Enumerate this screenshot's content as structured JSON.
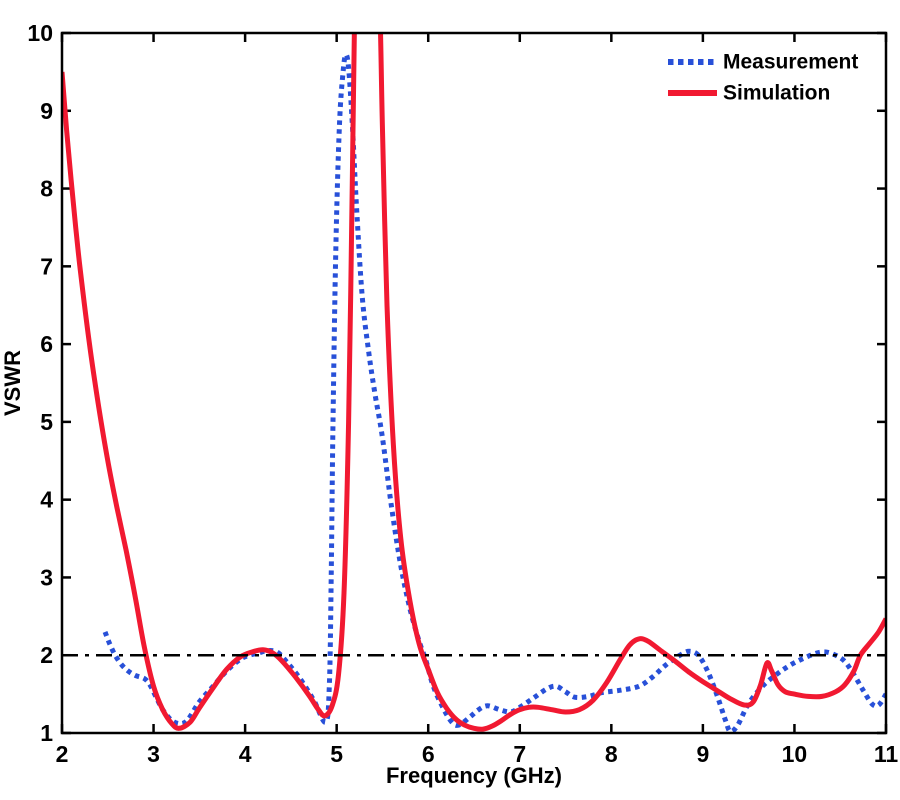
{
  "chart_data": {
    "type": "line",
    "title": "",
    "xlabel": "Frequency (GHz)",
    "ylabel": "VSWR",
    "xlim": [
      2,
      11
    ],
    "ylim": [
      1,
      10
    ],
    "x_ticks": [
      2,
      3,
      4,
      5,
      6,
      7,
      8,
      9,
      10,
      11
    ],
    "y_ticks": [
      1,
      2,
      3,
      4,
      5,
      6,
      7,
      8,
      9,
      10
    ],
    "grid": false,
    "legend_position": "top-right",
    "axis_color": "#000000",
    "reference_line": {
      "value": 2.0,
      "style": "dash-dot",
      "color": "#000000"
    },
    "series": [
      {
        "name": "Measurement",
        "color": "#2850d8",
        "line_style": "dotted",
        "points": [
          [
            2.47,
            2.3
          ],
          [
            2.52,
            2.15
          ],
          [
            2.58,
            2.0
          ],
          [
            2.65,
            1.88
          ],
          [
            2.72,
            1.8
          ],
          [
            2.8,
            1.74
          ],
          [
            2.9,
            1.7
          ],
          [
            2.96,
            1.62
          ],
          [
            3.02,
            1.48
          ],
          [
            3.1,
            1.3
          ],
          [
            3.2,
            1.16
          ],
          [
            3.3,
            1.12
          ],
          [
            3.38,
            1.18
          ],
          [
            3.5,
            1.4
          ],
          [
            3.65,
            1.6
          ],
          [
            3.8,
            1.8
          ],
          [
            3.95,
            1.95
          ],
          [
            4.05,
            2.0
          ],
          [
            4.15,
            2.03
          ],
          [
            4.25,
            2.06
          ],
          [
            4.35,
            2.04
          ],
          [
            4.45,
            1.92
          ],
          [
            4.6,
            1.7
          ],
          [
            4.75,
            1.42
          ],
          [
            4.88,
            1.14
          ],
          [
            4.92,
            1.6
          ],
          [
            4.94,
            3.0
          ],
          [
            4.96,
            5.0
          ],
          [
            4.99,
            7.2
          ],
          [
            5.03,
            8.8
          ],
          [
            5.07,
            9.5
          ],
          [
            5.1,
            9.72
          ],
          [
            5.13,
            9.55
          ],
          [
            5.17,
            8.85
          ],
          [
            5.22,
            7.7
          ],
          [
            5.28,
            6.6
          ],
          [
            5.35,
            5.9
          ],
          [
            5.42,
            5.35
          ],
          [
            5.5,
            4.8
          ],
          [
            5.6,
            3.9
          ],
          [
            5.7,
            3.15
          ],
          [
            5.8,
            2.6
          ],
          [
            5.9,
            2.18
          ],
          [
            5.97,
            1.95
          ],
          [
            6.05,
            1.62
          ],
          [
            6.15,
            1.35
          ],
          [
            6.25,
            1.15
          ],
          [
            6.33,
            1.1
          ],
          [
            6.45,
            1.2
          ],
          [
            6.55,
            1.3
          ],
          [
            6.65,
            1.35
          ],
          [
            6.78,
            1.3
          ],
          [
            6.9,
            1.27
          ],
          [
            7.0,
            1.33
          ],
          [
            7.15,
            1.45
          ],
          [
            7.3,
            1.57
          ],
          [
            7.4,
            1.6
          ],
          [
            7.5,
            1.53
          ],
          [
            7.6,
            1.46
          ],
          [
            7.75,
            1.47
          ],
          [
            7.9,
            1.52
          ],
          [
            8.1,
            1.55
          ],
          [
            8.3,
            1.6
          ],
          [
            8.45,
            1.72
          ],
          [
            8.6,
            1.88
          ],
          [
            8.75,
            2.0
          ],
          [
            8.85,
            2.05
          ],
          [
            8.95,
            2.0
          ],
          [
            9.05,
            1.8
          ],
          [
            9.15,
            1.5
          ],
          [
            9.25,
            1.15
          ],
          [
            9.3,
            1.02
          ],
          [
            9.38,
            1.1
          ],
          [
            9.5,
            1.38
          ],
          [
            9.65,
            1.6
          ],
          [
            9.8,
            1.75
          ],
          [
            9.95,
            1.87
          ],
          [
            10.1,
            1.96
          ],
          [
            10.25,
            2.03
          ],
          [
            10.35,
            2.04
          ],
          [
            10.45,
            2.0
          ],
          [
            10.55,
            1.92
          ],
          [
            10.65,
            1.75
          ],
          [
            10.75,
            1.55
          ],
          [
            10.85,
            1.37
          ],
          [
            10.92,
            1.36
          ],
          [
            11.0,
            1.5
          ]
        ]
      },
      {
        "name": "Simulation",
        "color": "#f11931",
        "line_style": "solid",
        "points": [
          [
            2.0,
            9.5
          ],
          [
            2.05,
            8.75
          ],
          [
            2.1,
            8.1
          ],
          [
            2.15,
            7.5
          ],
          [
            2.2,
            6.95
          ],
          [
            2.3,
            6.0
          ],
          [
            2.4,
            5.2
          ],
          [
            2.5,
            4.5
          ],
          [
            2.6,
            3.9
          ],
          [
            2.7,
            3.35
          ],
          [
            2.8,
            2.75
          ],
          [
            2.9,
            2.1
          ],
          [
            3.0,
            1.6
          ],
          [
            3.1,
            1.3
          ],
          [
            3.2,
            1.12
          ],
          [
            3.28,
            1.06
          ],
          [
            3.4,
            1.14
          ],
          [
            3.5,
            1.32
          ],
          [
            3.65,
            1.58
          ],
          [
            3.8,
            1.82
          ],
          [
            3.95,
            1.98
          ],
          [
            4.1,
            2.05
          ],
          [
            4.2,
            2.07
          ],
          [
            4.3,
            2.03
          ],
          [
            4.4,
            1.93
          ],
          [
            4.55,
            1.72
          ],
          [
            4.7,
            1.48
          ],
          [
            4.8,
            1.3
          ],
          [
            4.87,
            1.22
          ],
          [
            4.95,
            1.35
          ],
          [
            5.02,
            1.75
          ],
          [
            5.08,
            2.8
          ],
          [
            5.13,
            5.0
          ],
          [
            5.17,
            8.0
          ],
          [
            5.2,
            10.6
          ],
          [
            5.24,
            11.5
          ],
          [
            5.42,
            11.5
          ],
          [
            5.47,
            10.4
          ],
          [
            5.5,
            8.8
          ],
          [
            5.55,
            6.5
          ],
          [
            5.62,
            4.7
          ],
          [
            5.7,
            3.5
          ],
          [
            5.8,
            2.7
          ],
          [
            5.9,
            2.15
          ],
          [
            6.0,
            1.82
          ],
          [
            6.1,
            1.52
          ],
          [
            6.2,
            1.32
          ],
          [
            6.3,
            1.18
          ],
          [
            6.4,
            1.1
          ],
          [
            6.5,
            1.06
          ],
          [
            6.6,
            1.05
          ],
          [
            6.7,
            1.09
          ],
          [
            6.8,
            1.16
          ],
          [
            6.9,
            1.24
          ],
          [
            7.0,
            1.3
          ],
          [
            7.1,
            1.33
          ],
          [
            7.2,
            1.33
          ],
          [
            7.35,
            1.3
          ],
          [
            7.5,
            1.27
          ],
          [
            7.65,
            1.3
          ],
          [
            7.8,
            1.42
          ],
          [
            7.95,
            1.65
          ],
          [
            8.1,
            1.95
          ],
          [
            8.2,
            2.13
          ],
          [
            8.3,
            2.21
          ],
          [
            8.4,
            2.18
          ],
          [
            8.55,
            2.05
          ],
          [
            8.7,
            1.92
          ],
          [
            8.85,
            1.78
          ],
          [
            9.0,
            1.66
          ],
          [
            9.15,
            1.55
          ],
          [
            9.3,
            1.44
          ],
          [
            9.45,
            1.36
          ],
          [
            9.55,
            1.4
          ],
          [
            9.63,
            1.62
          ],
          [
            9.7,
            1.9
          ],
          [
            9.75,
            1.8
          ],
          [
            9.82,
            1.62
          ],
          [
            9.9,
            1.53
          ],
          [
            10.0,
            1.5
          ],
          [
            10.15,
            1.47
          ],
          [
            10.3,
            1.47
          ],
          [
            10.45,
            1.53
          ],
          [
            10.55,
            1.62
          ],
          [
            10.65,
            1.8
          ],
          [
            10.72,
            2.0
          ],
          [
            10.82,
            2.15
          ],
          [
            10.92,
            2.3
          ],
          [
            11.0,
            2.47
          ]
        ]
      }
    ]
  }
}
